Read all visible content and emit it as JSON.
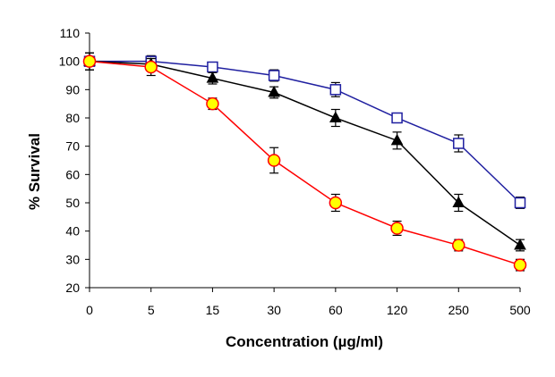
{
  "chart_data": {
    "type": "line",
    "title": "",
    "xlabel": "Concentration (µg/ml)",
    "ylabel": "% Survival",
    "categories": [
      "0",
      "5",
      "15",
      "30",
      "60",
      "120",
      "250",
      "500"
    ],
    "ylim": [
      20,
      110
    ],
    "yticks": [
      20,
      30,
      40,
      50,
      60,
      70,
      80,
      90,
      100,
      110
    ],
    "grid": false,
    "legend": "none",
    "series": [
      {
        "name": "open-square series",
        "marker": "square-open",
        "color": "#1f1fa0",
        "marker_fill": "#ffffff",
        "values": [
          100,
          100,
          98,
          95,
          90,
          80,
          71,
          50
        ],
        "errors": [
          3,
          2,
          1.5,
          2,
          2.5,
          1.5,
          3,
          2
        ]
      },
      {
        "name": "filled-triangle series",
        "marker": "triangle-filled",
        "color": "#000000",
        "marker_fill": "#000000",
        "values": [
          100,
          99,
          94,
          89,
          80,
          72,
          50,
          35
        ],
        "errors": [
          3,
          2,
          2,
          2,
          3,
          3,
          3,
          2
        ]
      },
      {
        "name": "yellow-circle series",
        "marker": "circle-filled",
        "color": "#ff0000",
        "marker_fill": "#ffff00",
        "values": [
          100,
          98,
          85,
          65,
          50,
          41,
          35,
          28
        ],
        "errors": [
          3,
          3,
          2,
          4.5,
          3,
          2.5,
          2,
          2
        ]
      }
    ]
  }
}
